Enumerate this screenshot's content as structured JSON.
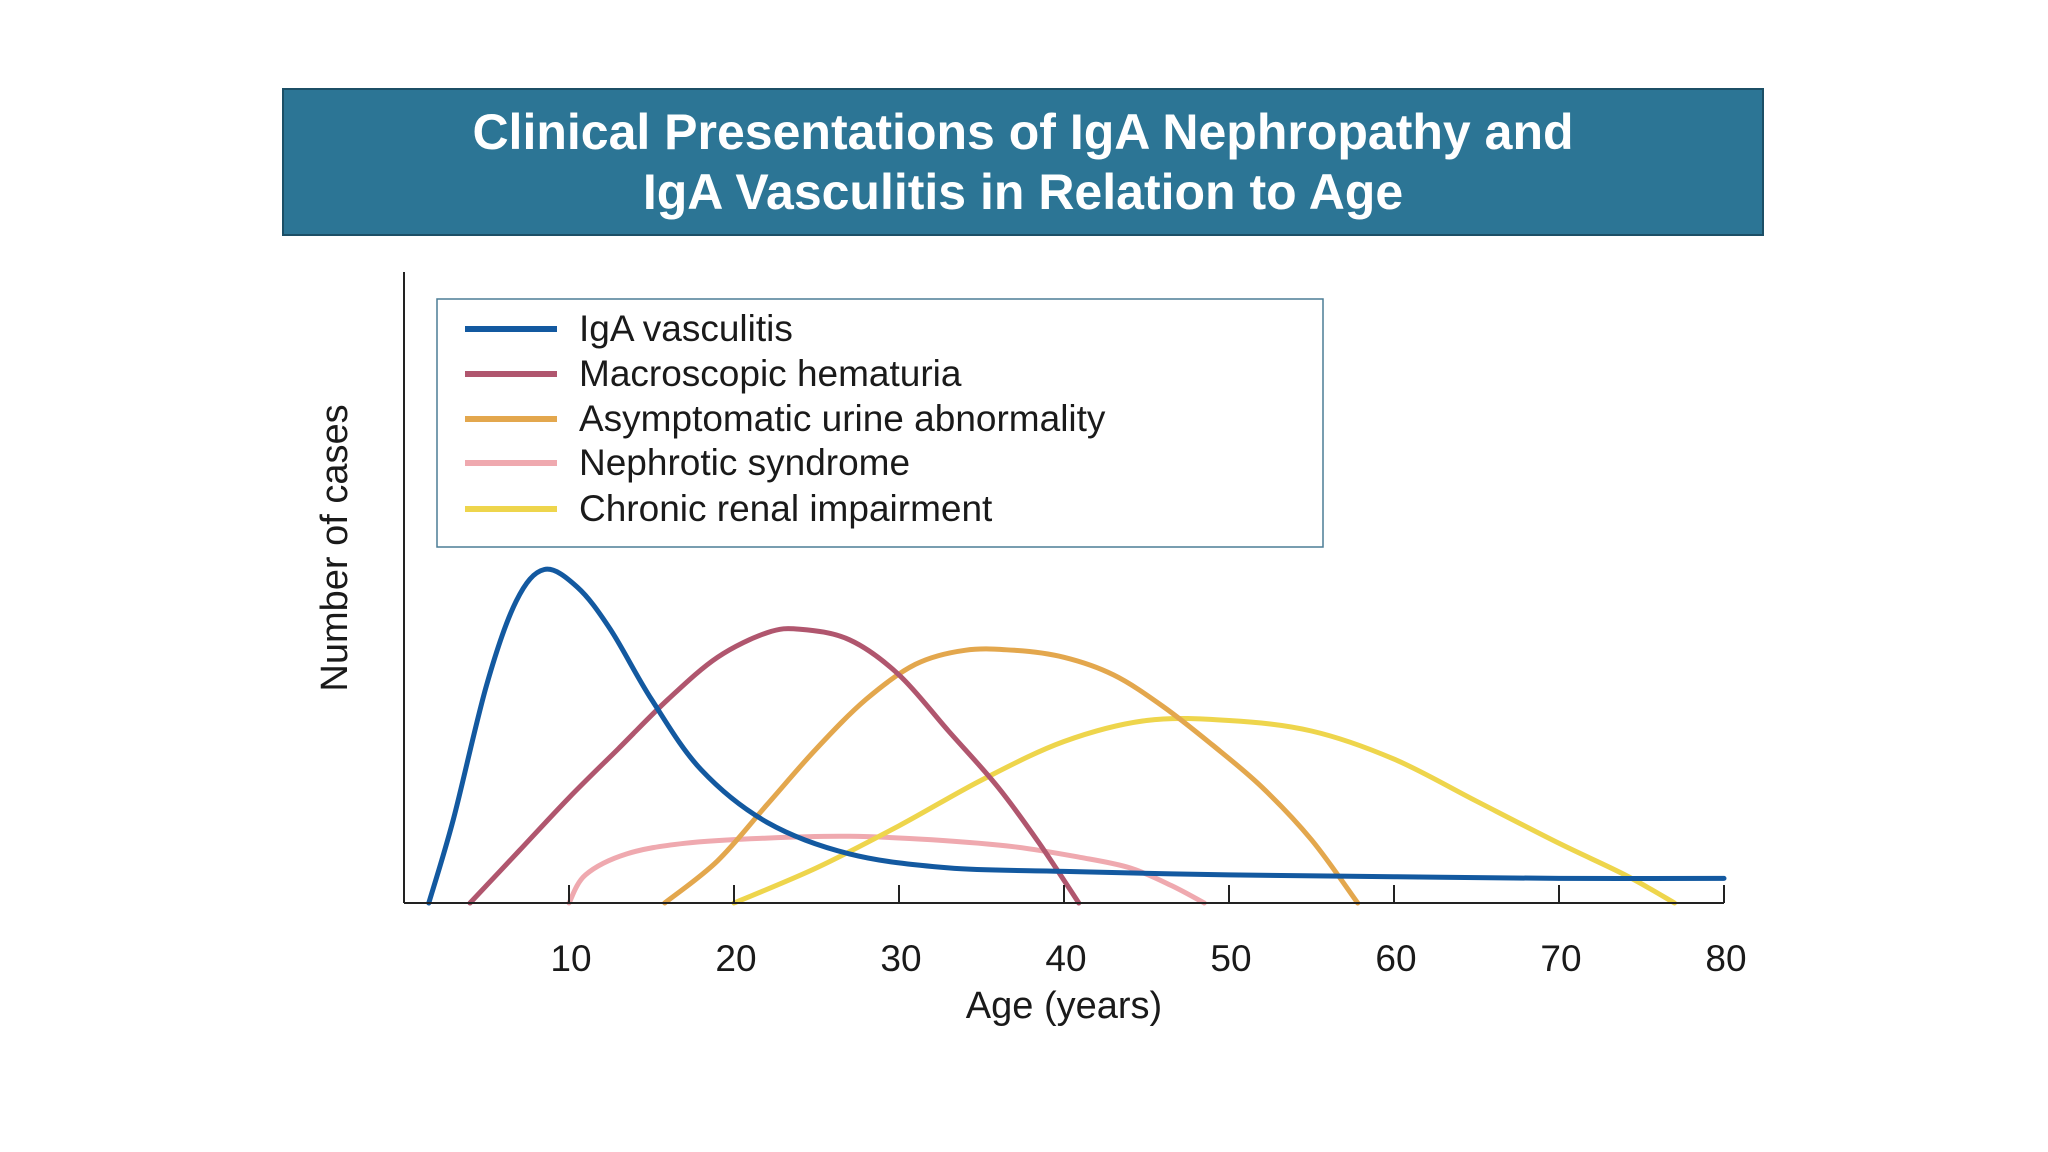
{
  "chart_data": {
    "type": "line",
    "title": [
      "Clinical Presentations of IgA Nephropathy and",
      "IgA Vasculitis in Relation to Age"
    ],
    "xlabel": "Age (years)",
    "ylabel": "Number of cases",
    "xlim": [
      0,
      80
    ],
    "ylim": [
      0,
      1
    ],
    "xticks": [
      "10",
      "20",
      "30",
      "40",
      "50",
      "60",
      "70",
      "80"
    ],
    "grid": false,
    "legend_position": "top",
    "series": [
      {
        "name": "IgA vasculitis",
        "color": "#1359a0",
        "points": [
          [
            1.5,
            0
          ],
          [
            3,
            0.24
          ],
          [
            5,
            0.62
          ],
          [
            6.8,
            0.86
          ],
          [
            8.5,
            0.95
          ],
          [
            10.5,
            0.9
          ],
          [
            12.5,
            0.78
          ],
          [
            15,
            0.58
          ],
          [
            18,
            0.38
          ],
          [
            22,
            0.23
          ],
          [
            27,
            0.14
          ],
          [
            33,
            0.1
          ],
          [
            40,
            0.09
          ],
          [
            50,
            0.08
          ],
          [
            60,
            0.075
          ],
          [
            70,
            0.07
          ],
          [
            80,
            0.07
          ]
        ]
      },
      {
        "name": "Macroscopic hematuria",
        "color": "#b0566e",
        "points": [
          [
            4,
            0
          ],
          [
            7,
            0.15
          ],
          [
            10,
            0.3
          ],
          [
            13,
            0.44
          ],
          [
            16,
            0.58
          ],
          [
            19,
            0.7
          ],
          [
            22,
            0.77
          ],
          [
            24,
            0.78
          ],
          [
            27,
            0.75
          ],
          [
            30,
            0.65
          ],
          [
            33,
            0.49
          ],
          [
            36,
            0.33
          ],
          [
            38.5,
            0.17
          ],
          [
            40.9,
            0
          ]
        ]
      },
      {
        "name": "Asymptomatic urine abnormality",
        "color": "#e3a74d",
        "points": [
          [
            15.8,
            0
          ],
          [
            19,
            0.12
          ],
          [
            22,
            0.28
          ],
          [
            25,
            0.44
          ],
          [
            28,
            0.58
          ],
          [
            31,
            0.68
          ],
          [
            34,
            0.72
          ],
          [
            37,
            0.72
          ],
          [
            40,
            0.7
          ],
          [
            43,
            0.65
          ],
          [
            46,
            0.56
          ],
          [
            49,
            0.45
          ],
          [
            52,
            0.33
          ],
          [
            55,
            0.18
          ],
          [
            57.8,
            0
          ]
        ]
      },
      {
        "name": "Nephrotic syndrome",
        "color": "#efa9af",
        "points": [
          [
            10,
            0
          ],
          [
            11,
            0.08
          ],
          [
            13.5,
            0.14
          ],
          [
            17,
            0.17
          ],
          [
            22,
            0.185
          ],
          [
            27,
            0.19
          ],
          [
            32,
            0.18
          ],
          [
            37,
            0.16
          ],
          [
            41,
            0.13
          ],
          [
            44,
            0.1
          ],
          [
            46.5,
            0.05
          ],
          [
            48.5,
            0
          ]
        ]
      },
      {
        "name": "Chronic renal impairment",
        "color": "#eed54c",
        "points": [
          [
            20,
            0
          ],
          [
            25,
            0.1
          ],
          [
            30,
            0.22
          ],
          [
            35,
            0.35
          ],
          [
            40,
            0.46
          ],
          [
            45,
            0.52
          ],
          [
            50,
            0.52
          ],
          [
            55,
            0.49
          ],
          [
            60,
            0.41
          ],
          [
            65,
            0.29
          ],
          [
            70,
            0.17
          ],
          [
            74,
            0.08
          ],
          [
            77,
            0
          ]
        ]
      }
    ]
  }
}
